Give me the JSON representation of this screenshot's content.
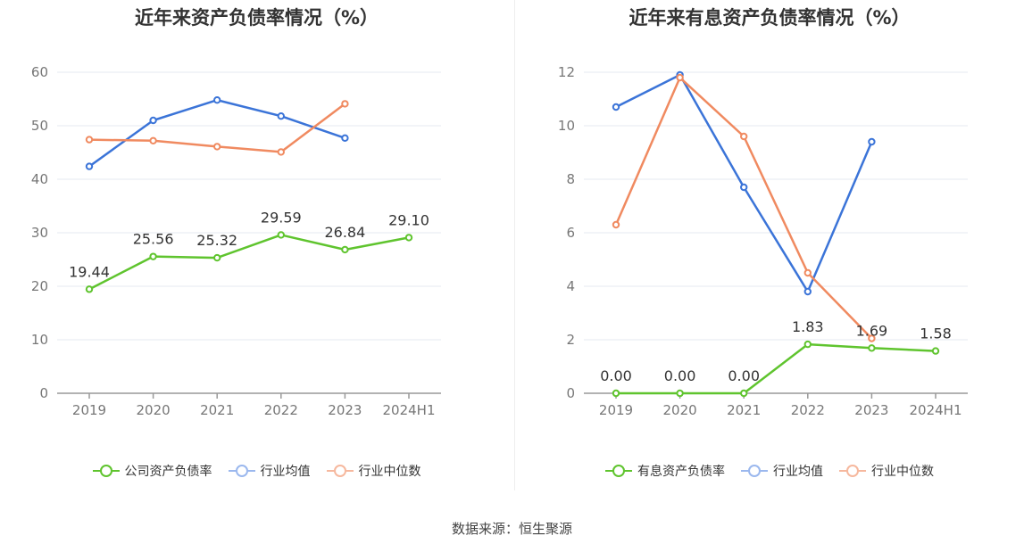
{
  "colors": {
    "company": "#5fc42e",
    "industry_avg": "#3b74d8",
    "industry_median": "#f08a60",
    "grid": "#e6e8f0",
    "axis": "#999999",
    "tick_text": "#777777",
    "label_text": "#333333"
  },
  "source_text": "数据来源：恒生聚源",
  "chart_data": [
    {
      "type": "line",
      "title": "近年来资产负债率情况（%）",
      "categories": [
        "2019",
        "2020",
        "2021",
        "2022",
        "2023",
        "2024H1"
      ],
      "ylim": [
        0,
        60
      ],
      "yticks": [
        0,
        10,
        20,
        30,
        40,
        50,
        60
      ],
      "grid": true,
      "legend_position": "bottom",
      "series": [
        {
          "name": "公司资产负债率",
          "color_key": "company",
          "values": [
            19.44,
            25.56,
            25.32,
            29.59,
            26.84,
            29.1
          ],
          "labels": [
            "19.44",
            "25.56",
            "25.32",
            "29.59",
            "26.84",
            "29.10"
          ]
        },
        {
          "name": "行业均值",
          "color_key": "industry_avg",
          "values": [
            42.4,
            51.0,
            54.8,
            51.8,
            47.7,
            null
          ]
        },
        {
          "name": "行业中位数",
          "color_key": "industry_median",
          "values": [
            47.4,
            47.2,
            46.1,
            45.1,
            54.1,
            null
          ]
        }
      ]
    },
    {
      "type": "line",
      "title": "近年来有息资产负债率情况（%）",
      "categories": [
        "2019",
        "2020",
        "2021",
        "2022",
        "2023",
        "2024H1"
      ],
      "ylim": [
        0,
        12
      ],
      "yticks": [
        0,
        2,
        4,
        6,
        8,
        10,
        12
      ],
      "grid": true,
      "legend_position": "bottom",
      "series": [
        {
          "name": "有息资产负债率",
          "color_key": "company",
          "values": [
            0.0,
            0.0,
            0.0,
            1.83,
            1.69,
            1.58
          ],
          "labels": [
            "0.00",
            "0.00",
            "0.00",
            "1.83",
            "1.69",
            "1.58"
          ]
        },
        {
          "name": "行业均值",
          "color_key": "industry_avg",
          "values": [
            10.7,
            11.9,
            7.7,
            3.8,
            9.4,
            null
          ]
        },
        {
          "name": "行业中位数",
          "color_key": "industry_median",
          "values": [
            6.3,
            11.8,
            9.6,
            4.5,
            2.05,
            null
          ]
        }
      ]
    }
  ]
}
